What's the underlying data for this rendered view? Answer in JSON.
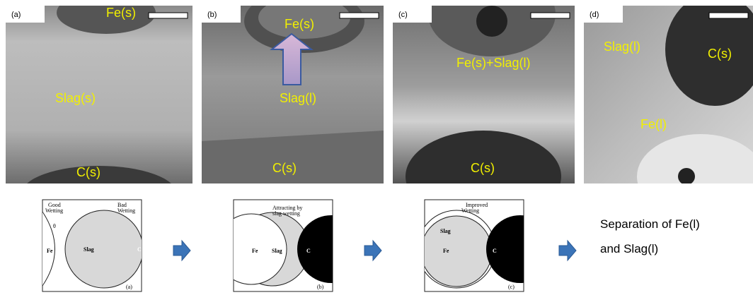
{
  "photos": [
    {
      "label": "(a)",
      "annotations": [
        "Fe(s)",
        "Slag(s)",
        "C(s)"
      ]
    },
    {
      "label": "(b)",
      "annotations": [
        "Fe(s)",
        "Slag(l)",
        "C(s)"
      ]
    },
    {
      "label": "(c)",
      "annotations": [
        "Fe(s)+Slag(l)",
        "C(s)"
      ]
    },
    {
      "label": "(d)",
      "annotations": [
        "Slag(l)",
        "C(s)",
        "Fe(l)"
      ]
    }
  ],
  "schematics": [
    {
      "label": "(a)",
      "texts": [
        "Good",
        "Wetting",
        "θ",
        "Bad",
        "Wetting",
        "Fe",
        "Slag",
        "C"
      ]
    },
    {
      "label": "(b)",
      "texts": [
        "Attracting by",
        "slag wetting",
        "Fe",
        "Slag",
        "C"
      ]
    },
    {
      "label": "(c)",
      "texts": [
        "Improved",
        "Wetting",
        "Slag",
        "Fe",
        "C"
      ]
    }
  ],
  "result": [
    "Separation of Fe(l)",
    "and Slag(l)"
  ]
}
